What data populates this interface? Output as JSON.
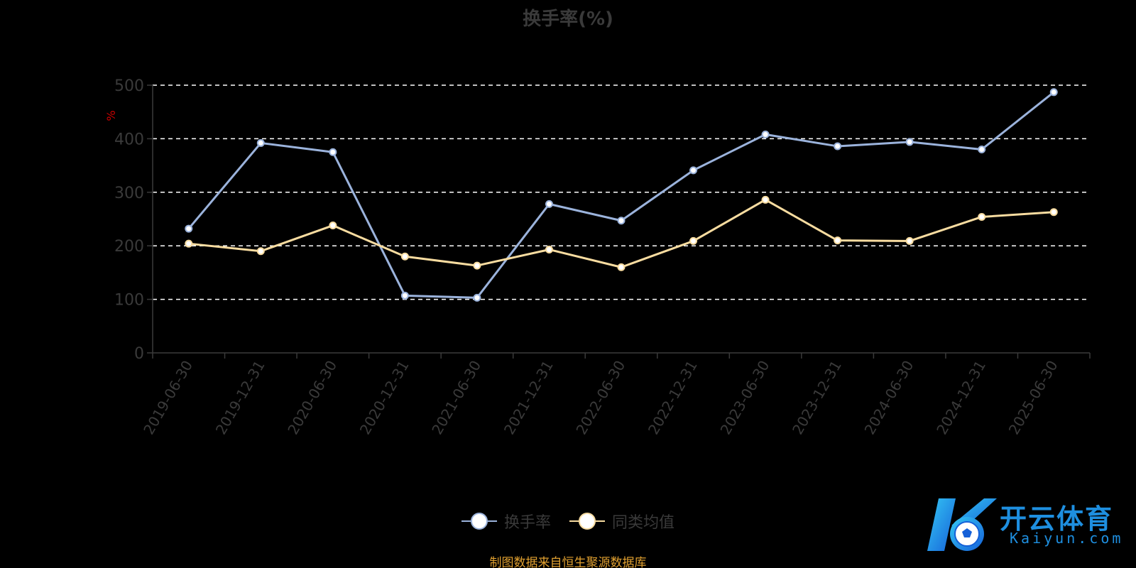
{
  "chart_data": {
    "type": "line",
    "title": "换手率(%)",
    "ylabel": "%",
    "xlabel": "",
    "ylim": [
      0,
      500
    ],
    "yticks": [
      0,
      100,
      200,
      300,
      400,
      500
    ],
    "grid": true,
    "legend_position": "bottom",
    "categories": [
      "2019-06-30",
      "2019-12-31",
      "2020-06-30",
      "2020-12-31",
      "2021-06-30",
      "2021-12-31",
      "2022-06-30",
      "2022-12-31",
      "2023-06-30",
      "2023-12-31",
      "2024-06-30",
      "2024-12-31",
      "2025-06-30"
    ],
    "series": [
      {
        "name": "换手率",
        "color": "#9bb3dc",
        "values": [
          232,
          392,
          375,
          107,
          103,
          278,
          247,
          341,
          408,
          386,
          394,
          380,
          487
        ]
      },
      {
        "name": "同类均值",
        "color": "#f8dca0",
        "values": [
          204,
          190,
          238,
          180,
          163,
          193,
          160,
          209,
          286,
          210,
          209,
          254,
          263
        ]
      }
    ]
  },
  "source_note": "制图数据来自恒生聚源数据库",
  "watermark": {
    "brand": "开云体育",
    "domain": "Kaiyun.com"
  },
  "colors": {
    "background": "#000000",
    "grid": "#ffffff",
    "axis": "#3a3a3a",
    "ylabel": "#cc0000",
    "source": "#e0a030",
    "watermark": "#1e8fe0"
  }
}
